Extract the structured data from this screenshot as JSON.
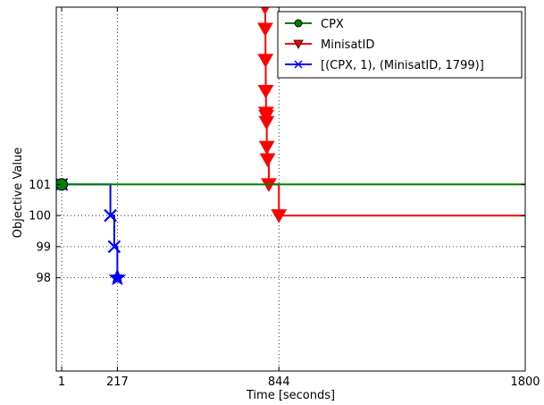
{
  "chart_data": {
    "type": "line",
    "title": "",
    "xlabel": "Time [seconds]",
    "ylabel": "Objective Value",
    "xlim": [
      -20,
      1800
    ],
    "ylim": [
      95,
      106.7
    ],
    "x_ticks": [
      1,
      217,
      844,
      1800
    ],
    "x_tick_labels": [
      "1",
      "217",
      "844",
      "1800"
    ],
    "y_ticks": [
      98,
      99,
      100,
      101
    ],
    "y_tick_labels": [
      "98",
      "99",
      "100",
      "101"
    ],
    "grid": true,
    "legend_position": "upper right",
    "step": "post",
    "series": [
      {
        "name": "CPX",
        "color": "#008000",
        "marker": "circle",
        "x": [
          1,
          1800
        ],
        "y": [
          101,
          101
        ]
      },
      {
        "name": "MinisatID",
        "color": "#ff0000",
        "marker": "triangle-down",
        "x": [
          790,
          791,
          792,
          793,
          794,
          795,
          796,
          797,
          800,
          805,
          844,
          1800
        ],
        "y": [
          106.7,
          106,
          105,
          104,
          103.3,
          103.2,
          103,
          102.2,
          101.8,
          101,
          100,
          100
        ]
      },
      {
        "name": "[(CPX, 1), (MinisatID, 1799)]",
        "color": "#0000ff",
        "marker": "x",
        "x": [
          1,
          190,
          205,
          217
        ],
        "y": [
          101,
          100,
          99,
          98
        ]
      }
    ]
  }
}
